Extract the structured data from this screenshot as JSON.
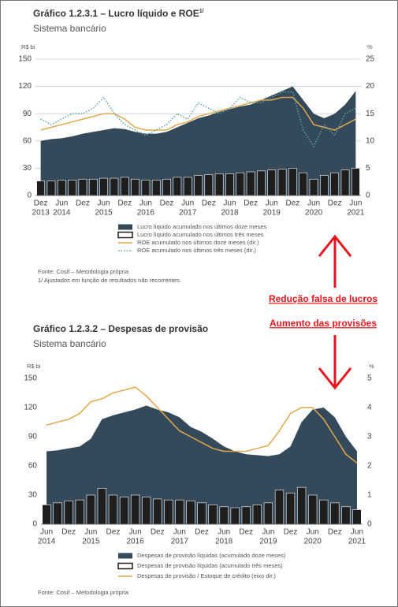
{
  "chart_data": [
    {
      "type": "combo",
      "title": "Gráfico 1.2.3.1 – Lucro líquido e ROE",
      "title_sup": "1/",
      "subtitle": "Sistema bancário",
      "y_label": "R$ bi",
      "y2_label": "%",
      "categories": [
        "Dez",
        null,
        "Jun",
        null,
        "Dez",
        null,
        "Jun",
        null,
        "Dez",
        null,
        "Jun",
        null,
        "Dez",
        null,
        "Jun",
        null,
        "Dez",
        null,
        "Jun",
        null,
        "Dez",
        null,
        "Jun",
        null,
        "Dez",
        null,
        "Jun",
        null,
        "Dez",
        null,
        "Jun"
      ],
      "years": [
        "2013",
        null,
        "2014",
        null,
        null,
        null,
        "2015",
        null,
        null,
        null,
        "2016",
        null,
        null,
        null,
        "2017",
        null,
        null,
        null,
        "2018",
        null,
        null,
        null,
        "2019",
        null,
        null,
        null,
        "2020",
        null,
        null,
        null,
        "2021"
      ],
      "ylim": [
        0,
        150
      ],
      "yticks": [
        0,
        30,
        60,
        90,
        120,
        150
      ],
      "y2lim": [
        0,
        25
      ],
      "y2ticks": [
        0,
        5,
        10,
        15,
        20,
        25
      ],
      "grid": true,
      "legend": "bottom",
      "series": [
        {
          "name": "Lucro líquido acumulado nos últimos doze meses",
          "type": "area",
          "color": "#34495a",
          "values": [
            60,
            62,
            63,
            65,
            68,
            70,
            72,
            74,
            73,
            70,
            68,
            68,
            70,
            75,
            80,
            85,
            88,
            92,
            95,
            98,
            100,
            105,
            110,
            115,
            120,
            105,
            90,
            85,
            90,
            100,
            115
          ]
        },
        {
          "name": "Lucro líquido acumulado nos últimos três meses",
          "type": "bar",
          "color": "#1e1e1e",
          "values": [
            16,
            16,
            17,
            17,
            18,
            18,
            19,
            19,
            20,
            18,
            17,
            17,
            18,
            20,
            20,
            22,
            23,
            24,
            24,
            25,
            26,
            27,
            28,
            29,
            30,
            25,
            18,
            22,
            25,
            28,
            30
          ]
        },
        {
          "name": "ROE acumulado nos últimos doze meses (dir.)",
          "type": "line",
          "axis": "y2",
          "color": "#e2a84b",
          "values": [
            12,
            12.5,
            13,
            13.5,
            14,
            14.5,
            15,
            15,
            14,
            12.5,
            12,
            12,
            12,
            13,
            13.5,
            14.5,
            15,
            15.5,
            16,
            16.5,
            17,
            17.5,
            17.5,
            18,
            18,
            16,
            13,
            12.5,
            12,
            13,
            14
          ]
        },
        {
          "name": "ROE acumulado nos últimos três meses (dir.)",
          "type": "line",
          "dotted": true,
          "axis": "y2",
          "color": "#5aa6a6",
          "values": [
            14,
            13,
            14,
            15,
            15,
            16,
            18,
            15,
            13,
            12,
            11,
            12,
            13,
            15,
            14,
            17,
            16,
            15,
            16,
            18,
            17,
            17,
            18,
            19,
            19,
            12,
            9,
            13,
            11,
            15,
            16
          ]
        }
      ],
      "source": "Fonte: Cosif – Metodologia própria",
      "footnote": "1/ Ajustados em função de resultados não recorrentes."
    },
    {
      "type": "combo",
      "title": "Gráfico 1.2.3.2 – Despesas de provisão",
      "subtitle": "Sistema bancário",
      "y_label": "R$ bi",
      "y2_label": "%",
      "categories": [
        "Jun",
        null,
        "Dez",
        null,
        "Jun",
        null,
        "Dez",
        null,
        "Jun",
        null,
        "Dez",
        null,
        "Jun",
        null,
        "Dez",
        null,
        "Jun",
        null,
        "Dez",
        null,
        "Jun",
        null,
        "Dez",
        null,
        "Jun",
        null,
        "Dez",
        null,
        "Jun"
      ],
      "years": [
        "2014",
        null,
        null,
        null,
        "2015",
        null,
        null,
        null,
        "2016",
        null,
        null,
        null,
        "2017",
        null,
        null,
        null,
        "2018",
        null,
        null,
        null,
        "2019",
        null,
        null,
        null,
        "2020",
        null,
        null,
        null,
        "2021"
      ],
      "ylim": [
        0,
        150
      ],
      "yticks": [
        0,
        30,
        60,
        90,
        120,
        150
      ],
      "y2lim": [
        0,
        5
      ],
      "y2ticks": [
        0,
        1,
        2,
        3,
        4,
        5
      ],
      "grid": false,
      "legend": "bottom",
      "series": [
        {
          "name": "Despesas de provisão líquidas (acumulado doze meses)",
          "type": "area",
          "color": "#34495a",
          "values": [
            75,
            76,
            78,
            80,
            88,
            108,
            112,
            115,
            118,
            122,
            118,
            115,
            110,
            100,
            95,
            88,
            80,
            75,
            72,
            71,
            70,
            72,
            80,
            105,
            118,
            120,
            110,
            90,
            75
          ]
        },
        {
          "name": "Despesas de provisão líquidas (acumulado três meses)",
          "type": "bar",
          "color": "#1e1e1e",
          "values": [
            20,
            22,
            24,
            25,
            30,
            37,
            30,
            28,
            30,
            28,
            26,
            25,
            25,
            24,
            22,
            20,
            18,
            17,
            18,
            20,
            22,
            35,
            32,
            38,
            30,
            25,
            22,
            18,
            15
          ]
        },
        {
          "name": "Despesas de provisão / Estoque de crédito (eixo dir.)",
          "type": "line",
          "axis": "y2",
          "color": "#e2a84b",
          "values": [
            3.4,
            3.5,
            3.6,
            3.8,
            4.2,
            4.3,
            4.5,
            4.6,
            4.7,
            4.4,
            4.0,
            3.6,
            3.2,
            3.0,
            2.8,
            2.6,
            2.5,
            2.5,
            2.5,
            2.6,
            2.7,
            3.2,
            3.8,
            4.0,
            4.0,
            3.6,
            3.0,
            2.4,
            2.1
          ]
        }
      ],
      "source": "Fonte: Cosif – Metodologia própria"
    }
  ],
  "annotations": [
    "Redução falsa de lucros",
    "Aumento das provisões"
  ]
}
